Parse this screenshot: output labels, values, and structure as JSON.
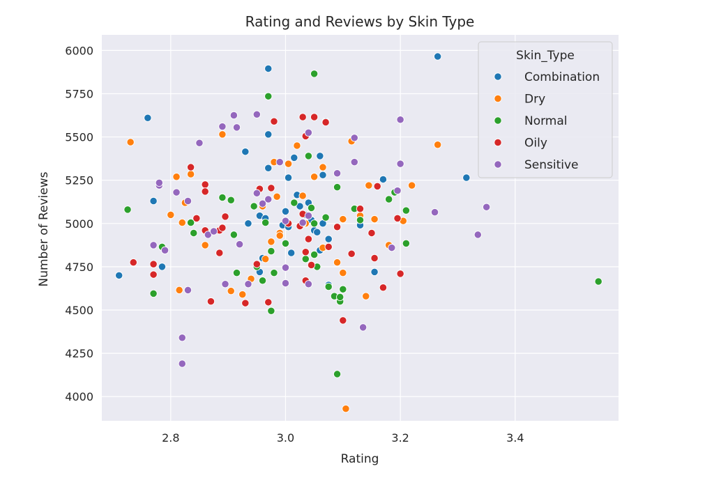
{
  "chart_data": {
    "type": "scatter",
    "title": "Rating and Reviews by Skin Type",
    "xlabel": "Rating",
    "ylabel": "Number of Reviews",
    "xlim": [
      2.68,
      3.58
    ],
    "ylim": [
      3860,
      6090
    ],
    "xticks": [
      2.8,
      3.0,
      3.2,
      3.4
    ],
    "yticks": [
      4000,
      4250,
      4500,
      4750,
      5000,
      5250,
      5500,
      5750,
      6000
    ],
    "xtick_labels": [
      "2.8",
      "3.0",
      "3.2",
      "3.4"
    ],
    "ytick_labels": [
      "4000",
      "4250",
      "4500",
      "4750",
      "5000",
      "5250",
      "5500",
      "5750",
      "6000"
    ],
    "grid": true,
    "legend_title": "Skin_Type",
    "legend_position": "top-right",
    "series": [
      {
        "name": "Combination",
        "color": "#1f77b4",
        "points": [
          [
            2.71,
            4700
          ],
          [
            2.76,
            5610
          ],
          [
            2.77,
            5130
          ],
          [
            2.785,
            4750
          ],
          [
            2.93,
            5415
          ],
          [
            2.935,
            5000
          ],
          [
            2.955,
            5045
          ],
          [
            2.955,
            4720
          ],
          [
            2.96,
            4800
          ],
          [
            2.965,
            5030
          ],
          [
            2.97,
            5895
          ],
          [
            2.97,
            5515
          ],
          [
            2.97,
            5320
          ],
          [
            2.995,
            4990
          ],
          [
            3.0,
            5070
          ],
          [
            3.005,
            4980
          ],
          [
            3.005,
            5265
          ],
          [
            3.01,
            4830
          ],
          [
            3.015,
            5380
          ],
          [
            3.02,
            5165
          ],
          [
            3.025,
            5100
          ],
          [
            3.035,
            5050
          ],
          [
            3.04,
            5120
          ],
          [
            3.045,
            5020
          ],
          [
            3.05,
            4960
          ],
          [
            3.055,
            4950
          ],
          [
            3.06,
            4845
          ],
          [
            3.06,
            5390
          ],
          [
            3.065,
            5000
          ],
          [
            3.065,
            5280
          ],
          [
            3.07,
            5590
          ],
          [
            3.075,
            4910
          ],
          [
            3.075,
            4645
          ],
          [
            3.13,
            4990
          ],
          [
            3.155,
            4720
          ],
          [
            3.17,
            5255
          ],
          [
            3.265,
            5965
          ],
          [
            3.315,
            5265
          ]
        ]
      },
      {
        "name": "Dry",
        "color": "#ff7f0e",
        "points": [
          [
            2.73,
            5470
          ],
          [
            2.8,
            5050
          ],
          [
            2.81,
            5270
          ],
          [
            2.815,
            4615
          ],
          [
            2.82,
            5005
          ],
          [
            2.825,
            5120
          ],
          [
            2.835,
            5285
          ],
          [
            2.86,
            4875
          ],
          [
            2.89,
            5515
          ],
          [
            2.905,
            4610
          ],
          [
            2.925,
            4590
          ],
          [
            2.94,
            4680
          ],
          [
            2.96,
            5100
          ],
          [
            2.965,
            4795
          ],
          [
            2.97,
            5140
          ],
          [
            2.975,
            4895
          ],
          [
            2.98,
            5355
          ],
          [
            2.985,
            5155
          ],
          [
            2.99,
            4945
          ],
          [
            2.99,
            4930
          ],
          [
            3.005,
            5345
          ],
          [
            3.02,
            5450
          ],
          [
            3.03,
            5160
          ],
          [
            3.035,
            5000
          ],
          [
            3.05,
            5270
          ],
          [
            3.065,
            5325
          ],
          [
            3.065,
            4860
          ],
          [
            3.09,
            4775
          ],
          [
            3.1,
            5025
          ],
          [
            3.1,
            4715
          ],
          [
            3.105,
            3930
          ],
          [
            3.115,
            5475
          ],
          [
            3.13,
            5045
          ],
          [
            3.14,
            4580
          ],
          [
            3.145,
            5220
          ],
          [
            3.155,
            5025
          ],
          [
            3.18,
            4875
          ],
          [
            3.205,
            5015
          ],
          [
            3.22,
            5220
          ],
          [
            3.265,
            5455
          ]
        ]
      },
      {
        "name": "Normal",
        "color": "#2ca02c",
        "points": [
          [
            2.725,
            5080
          ],
          [
            2.77,
            4595
          ],
          [
            2.785,
            4865
          ],
          [
            2.835,
            5005
          ],
          [
            2.84,
            4945
          ],
          [
            2.875,
            4955
          ],
          [
            2.89,
            5150
          ],
          [
            2.905,
            5135
          ],
          [
            2.91,
            4935
          ],
          [
            2.915,
            4715
          ],
          [
            2.945,
            5100
          ],
          [
            2.95,
            4750
          ],
          [
            2.96,
            4670
          ],
          [
            2.965,
            5005
          ],
          [
            2.97,
            5735
          ],
          [
            2.975,
            4495
          ],
          [
            2.98,
            4715
          ],
          [
            2.975,
            4840
          ],
          [
            3.0,
            4885
          ],
          [
            3.015,
            5120
          ],
          [
            3.03,
            5000
          ],
          [
            3.035,
            4795
          ],
          [
            3.04,
            5390
          ],
          [
            3.045,
            5090
          ],
          [
            3.05,
            5000
          ],
          [
            3.05,
            4820
          ],
          [
            3.05,
            5865
          ],
          [
            3.055,
            4750
          ],
          [
            3.07,
            5035
          ],
          [
            3.075,
            4635
          ],
          [
            3.085,
            4580
          ],
          [
            3.09,
            5210
          ],
          [
            3.09,
            4130
          ],
          [
            3.095,
            4550
          ],
          [
            3.095,
            4575
          ],
          [
            3.1,
            4620
          ],
          [
            3.12,
            5085
          ],
          [
            3.13,
            5020
          ],
          [
            3.18,
            5140
          ],
          [
            3.19,
            5180
          ],
          [
            3.21,
            4885
          ],
          [
            3.21,
            5075
          ],
          [
            3.545,
            4665
          ]
        ]
      },
      {
        "name": "Oily",
        "color": "#d62728",
        "points": [
          [
            2.735,
            4775
          ],
          [
            2.77,
            4705
          ],
          [
            2.77,
            4765
          ],
          [
            2.835,
            5325
          ],
          [
            2.845,
            5030
          ],
          [
            2.86,
            5225
          ],
          [
            2.86,
            5185
          ],
          [
            2.86,
            4960
          ],
          [
            2.87,
            4550
          ],
          [
            2.885,
            4960
          ],
          [
            2.885,
            4830
          ],
          [
            2.89,
            4975
          ],
          [
            2.895,
            5040
          ],
          [
            2.93,
            4540
          ],
          [
            2.95,
            4765
          ],
          [
            2.955,
            5200
          ],
          [
            2.97,
            4545
          ],
          [
            2.975,
            5205
          ],
          [
            2.98,
            5590
          ],
          [
            3.005,
            5000
          ],
          [
            3.025,
            4985
          ],
          [
            3.03,
            5055
          ],
          [
            3.03,
            5615
          ],
          [
            3.035,
            5505
          ],
          [
            3.035,
            4835
          ],
          [
            3.035,
            4670
          ],
          [
            3.04,
            4910
          ],
          [
            3.045,
            4760
          ],
          [
            3.05,
            5615
          ],
          [
            3.07,
            5585
          ],
          [
            3.075,
            4865
          ],
          [
            3.09,
            4980
          ],
          [
            3.1,
            4440
          ],
          [
            3.115,
            4825
          ],
          [
            3.13,
            5085
          ],
          [
            3.15,
            4945
          ],
          [
            3.155,
            4800
          ],
          [
            3.16,
            5215
          ],
          [
            3.17,
            4630
          ],
          [
            3.195,
            5030
          ],
          [
            3.2,
            4710
          ]
        ]
      },
      {
        "name": "Sensitive",
        "color": "#9467bd",
        "points": [
          [
            2.77,
            4875
          ],
          [
            2.78,
            5220
          ],
          [
            2.78,
            5235
          ],
          [
            2.79,
            4845
          ],
          [
            2.81,
            5180
          ],
          [
            2.82,
            4340
          ],
          [
            2.82,
            4190
          ],
          [
            2.83,
            5130
          ],
          [
            2.83,
            4615
          ],
          [
            2.85,
            5465
          ],
          [
            2.865,
            4935
          ],
          [
            2.875,
            4955
          ],
          [
            2.89,
            5560
          ],
          [
            2.895,
            4650
          ],
          [
            2.91,
            5625
          ],
          [
            2.915,
            5555
          ],
          [
            2.92,
            4880
          ],
          [
            2.935,
            4650
          ],
          [
            2.95,
            5175
          ],
          [
            2.95,
            5630
          ],
          [
            2.96,
            5115
          ],
          [
            2.97,
            5140
          ],
          [
            2.99,
            5355
          ],
          [
            3.0,
            4745
          ],
          [
            3.0,
            4655
          ],
          [
            3.0,
            5015
          ],
          [
            3.03,
            5005
          ],
          [
            3.04,
            4650
          ],
          [
            3.04,
            5525
          ],
          [
            3.04,
            5045
          ],
          [
            3.09,
            5290
          ],
          [
            3.12,
            5495
          ],
          [
            3.12,
            5355
          ],
          [
            3.135,
            4400
          ],
          [
            3.185,
            4860
          ],
          [
            3.195,
            5190
          ],
          [
            3.2,
            5600
          ],
          [
            3.2,
            5345
          ],
          [
            3.26,
            5065
          ],
          [
            3.335,
            4935
          ],
          [
            3.35,
            5095
          ]
        ]
      }
    ]
  }
}
